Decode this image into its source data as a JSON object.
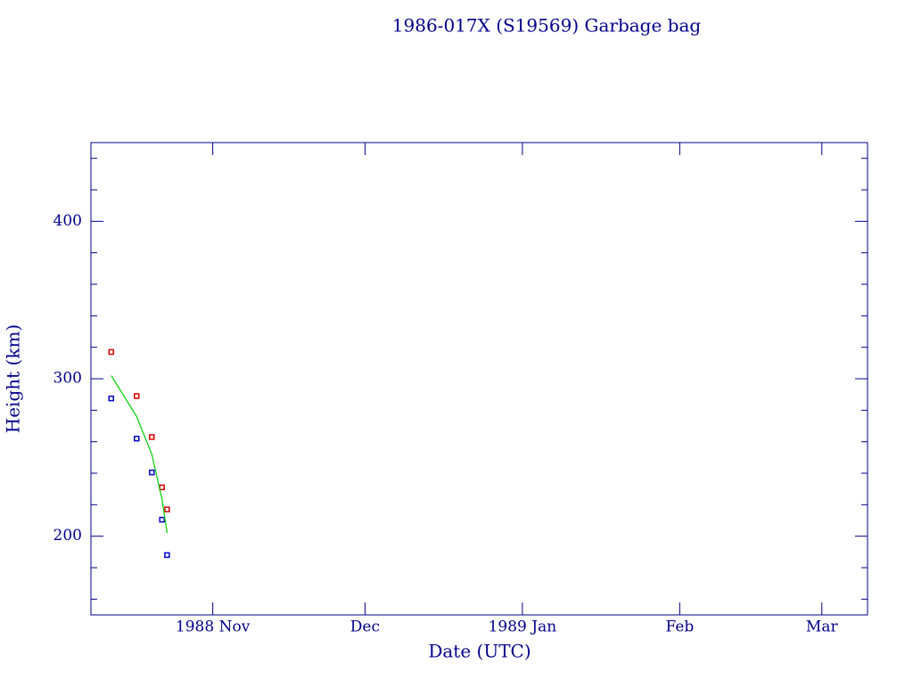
{
  "chart_data": {
    "type": "scatter",
    "title": "1986-017X (S19569) Garbage bag",
    "xlabel": "Date (UTC)",
    "ylabel": "Height (km)",
    "xlim": [
      "1988-10-08",
      "1989-03-10"
    ],
    "xticks": [
      {
        "value": "1988-11-01",
        "label": "1988 Nov"
      },
      {
        "value": "1988-12-01",
        "label": "Dec"
      },
      {
        "value": "1989-01-01",
        "label": "1989 Jan"
      },
      {
        "value": "1989-02-01",
        "label": "Feb"
      },
      {
        "value": "1989-03-01",
        "label": "Mar"
      }
    ],
    "ylim": [
      150,
      450
    ],
    "yticks": [
      200,
      300,
      400
    ],
    "yminorticks": [
      160,
      180,
      220,
      240,
      260,
      280,
      320,
      340,
      360,
      380,
      420,
      440
    ],
    "series": [
      {
        "style": "marker",
        "color": "#e00000",
        "x": [
          "1988-10-12",
          "1988-10-17",
          "1988-10-20",
          "1988-10-22",
          "1988-10-23"
        ],
        "values": [
          317,
          289,
          263,
          231,
          217
        ]
      },
      {
        "style": "marker",
        "color": "#0000d0",
        "x": [
          "1988-10-12",
          "1988-10-17",
          "1988-10-20",
          "1988-10-22",
          "1988-10-23"
        ],
        "values": [
          287.5,
          262,
          240.5,
          210.5,
          188
        ]
      },
      {
        "style": "line",
        "color": "#00d000",
        "x": [
          "1988-10-12",
          "1988-10-17",
          "1988-10-20",
          "1988-10-22",
          "1988-10-23"
        ],
        "values": [
          302,
          276,
          252,
          223.5,
          202
        ]
      }
    ]
  }
}
